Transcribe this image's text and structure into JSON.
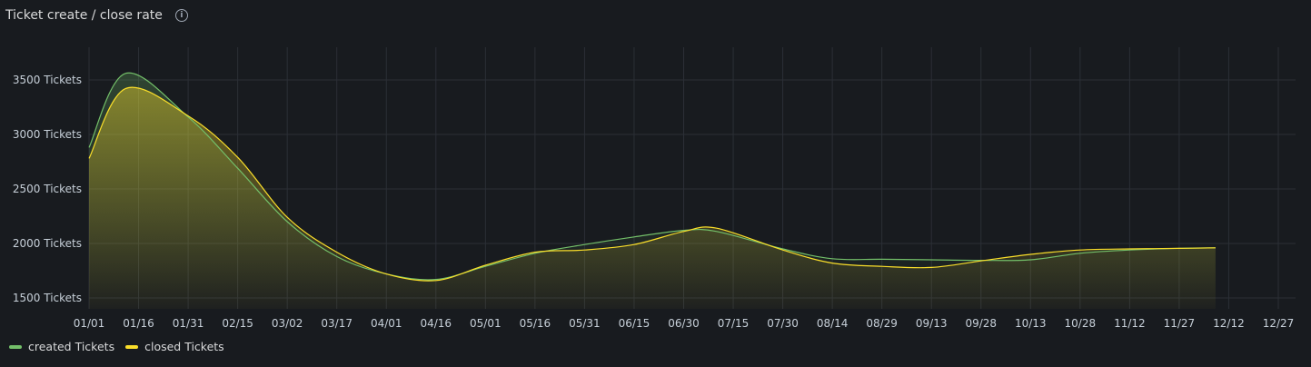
{
  "panel": {
    "title": "Ticket create / close rate"
  },
  "colors": {
    "created": "#73bf69",
    "closed": "#fade2a",
    "grid": "#2b2f36"
  },
  "chart_data": {
    "type": "area",
    "title": "Ticket create / close rate",
    "x_ticks": [
      "01/01",
      "01/16",
      "01/31",
      "02/15",
      "03/02",
      "03/17",
      "04/01",
      "04/16",
      "05/01",
      "05/16",
      "05/31",
      "06/15",
      "06/30",
      "07/15",
      "07/30",
      "08/14",
      "08/29",
      "09/13",
      "09/28",
      "10/13",
      "10/28",
      "11/12",
      "11/27",
      "12/12",
      "12/27"
    ],
    "y_ticks": [
      "1500 Tickets",
      "2000 Tickets",
      "2500 Tickets",
      "3000 Tickets",
      "3500 Tickets"
    ],
    "y_tick_values": [
      1500,
      2000,
      2500,
      3000,
      3500
    ],
    "xlim": [
      "01/01",
      "01/05"
    ],
    "ylim": [
      1400,
      3800
    ],
    "grid": true,
    "legend_position": "bottom-left",
    "x": [
      "01/01",
      "01/12",
      "01/31",
      "02/15",
      "03/02",
      "03/17",
      "04/01",
      "04/16",
      "05/01",
      "05/16",
      "05/31",
      "06/15",
      "06/30",
      "07/10",
      "07/30",
      "08/14",
      "08/29",
      "09/13",
      "09/28",
      "10/13",
      "10/28",
      "11/12",
      "11/27",
      "12/08"
    ],
    "series": [
      {
        "name": "created Tickets",
        "values": [
          2880,
          3560,
          3160,
          2690,
          2200,
          1880,
          1720,
          1670,
          1790,
          1910,
          1990,
          2060,
          2120,
          2110,
          1950,
          1860,
          1855,
          1850,
          1845,
          1850,
          1910,
          1940,
          1955,
          1960
        ]
      },
      {
        "name": "closed Tickets",
        "values": [
          2780,
          3420,
          3170,
          2790,
          2240,
          1920,
          1720,
          1660,
          1800,
          1920,
          1940,
          1990,
          2110,
          2140,
          1940,
          1820,
          1790,
          1780,
          1840,
          1900,
          1940,
          1950,
          1955,
          1960
        ]
      }
    ]
  }
}
